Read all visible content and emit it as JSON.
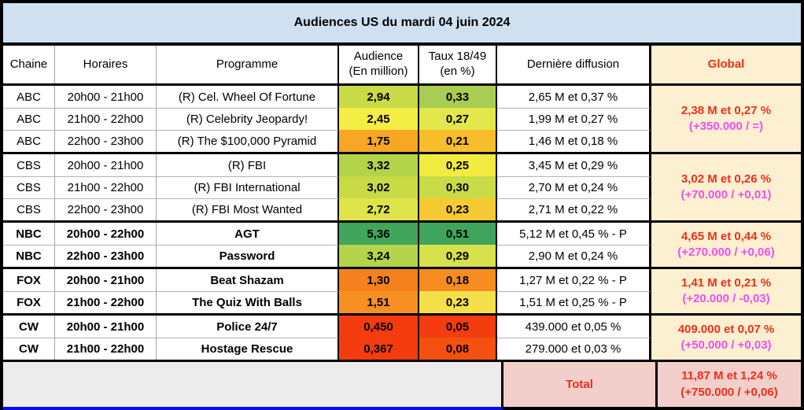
{
  "title": "Audiences US du mardi 04 juin 2024",
  "header": {
    "chaine": "Chaine",
    "horaires": "Horaires",
    "programme": "Programme",
    "audience_line1": "Audience",
    "audience_line2": "(En million)",
    "taux_line1": "Taux 18/49",
    "taux_line2": "(en %)",
    "diffusion": "Dernière diffusion",
    "global": "Global"
  },
  "colors": {
    "title_bg": "#cfe0f1",
    "global_bg": "#fcf0d0",
    "total_bg": "#f2cfca",
    "empty_bg": "#ececec",
    "red_text": "#ee2e1a",
    "magenta_text": "#f24ef2",
    "blue_line": "#0a0af8"
  },
  "groups": [
    {
      "network": "ABC",
      "global_line1": "2,38 M et 0,27 %",
      "global_line2": "(+350.000 / =)",
      "rows": [
        {
          "chaine": "ABC",
          "horaires": "20h00 - 21h00",
          "programme": "(R) Cel. Wheel Of Fortune",
          "audience": "2,94",
          "audience_bg": "#c9da47",
          "taux": "0,33",
          "taux_bg": "#a9cd52",
          "diffusion": "2,65 M et 0,37 %"
        },
        {
          "chaine": "ABC",
          "horaires": "21h00 - 22h00",
          "programme": "(R) Celebrity Jeopardy!",
          "audience": "2,45",
          "audience_bg": "#f4ee44",
          "taux": "0,27",
          "taux_bg": "#e3e74b",
          "diffusion": "1,99 M et 0,27 %"
        },
        {
          "chaine": "ABC",
          "horaires": "22h00 - 23h00",
          "programme": "(R) The $100,000 Pyramid",
          "audience": "1,75",
          "audience_bg": "#f7a724",
          "taux": "0,21",
          "taux_bg": "#f7bd2a",
          "diffusion": "1,46 M et 0,18 %"
        }
      ]
    },
    {
      "network": "CBS",
      "global_line1": "3,02 M et 0,26 %",
      "global_line2": "(+70.000 / +0,01)",
      "rows": [
        {
          "chaine": "CBS",
          "horaires": "20h00 - 21h00",
          "programme": "(R) FBI",
          "audience": "3,32",
          "audience_bg": "#b3d348",
          "taux": "0,25",
          "taux_bg": "#f2ec41",
          "diffusion": "3,45 M et 0,29 %"
        },
        {
          "chaine": "CBS",
          "horaires": "21h00 - 22h00",
          "programme": "(R) FBI International",
          "audience": "3,02",
          "audience_bg": "#c8da46",
          "taux": "0,30",
          "taux_bg": "#cadb48",
          "diffusion": "2,70 M et 0,24 %"
        },
        {
          "chaine": "CBS",
          "horaires": "22h00 - 23h00",
          "programme": "(R) FBI Most Wanted",
          "audience": "2,72",
          "audience_bg": "#dee44a",
          "taux": "0,23",
          "taux_bg": "#f6ca32",
          "diffusion": "2,71 M et 0,22 %"
        }
      ]
    },
    {
      "network": "NBC",
      "global_line1": "4,65 M et 0,44 %",
      "global_line2": "(+270.000 / +0,06)",
      "rows": [
        {
          "chaine": "NBC",
          "horaires": "20h00 - 22h00",
          "programme": "AGT",
          "audience": "5,36",
          "audience_bg": "#42a55c",
          "taux": "0,51",
          "taux_bg": "#40a55c",
          "diffusion": "5,12 M et 0,45 % - P"
        },
        {
          "chaine": "NBC",
          "horaires": "22h00 - 23h00",
          "programme": "Password",
          "audience": "3,24",
          "audience_bg": "#b4d44b",
          "taux": "0,29",
          "taux_bg": "#d7e14c",
          "diffusion": "2,90 M et 0,24 %"
        }
      ]
    },
    {
      "network": "FOX",
      "global_line1": "1,41 M et 0,21 %",
      "global_line2": "(+20.000 / -0,03)",
      "rows": [
        {
          "chaine": "FOX",
          "horaires": "20h00 - 21h00",
          "programme": "Beat Shazam",
          "audience": "1,30",
          "audience_bg": "#f5821f",
          "taux": "0,18",
          "taux_bg": "#f78d21",
          "diffusion": "1,27 M et 0,22 % - P"
        },
        {
          "chaine": "FOX",
          "horaires": "21h00 - 22h00",
          "programme": "The Quiz With Balls",
          "audience": "1,51",
          "audience_bg": "#f79022",
          "taux": "0,23",
          "taux_bg": "#f5e04a",
          "diffusion": "1,51 M et 0,25 % - P"
        }
      ]
    },
    {
      "network": "CW",
      "global_line1": "409.000 et 0,07 %",
      "global_line2": "(+50.000 / +0,03)",
      "rows": [
        {
          "chaine": "CW",
          "horaires": "20h00 - 21h00",
          "programme": "Police 24/7",
          "audience": "0,450",
          "audience_bg": "#f43c0f",
          "taux": "0,05",
          "taux_bg": "#f43c0f",
          "diffusion": "439.000 et 0,05 %"
        },
        {
          "chaine": "CW",
          "horaires": "21h00 - 22h00",
          "programme": "Hostage Rescue",
          "audience": "0,367",
          "audience_bg": "#f43c0f",
          "taux": "0,08",
          "taux_bg": "#f5500f",
          "diffusion": "279.000 et 0,03 %"
        }
      ]
    }
  ],
  "total": {
    "label": "Total",
    "line1": "11,87 M et 1,24 %",
    "line2": "(+750.000 / +0,06)"
  }
}
